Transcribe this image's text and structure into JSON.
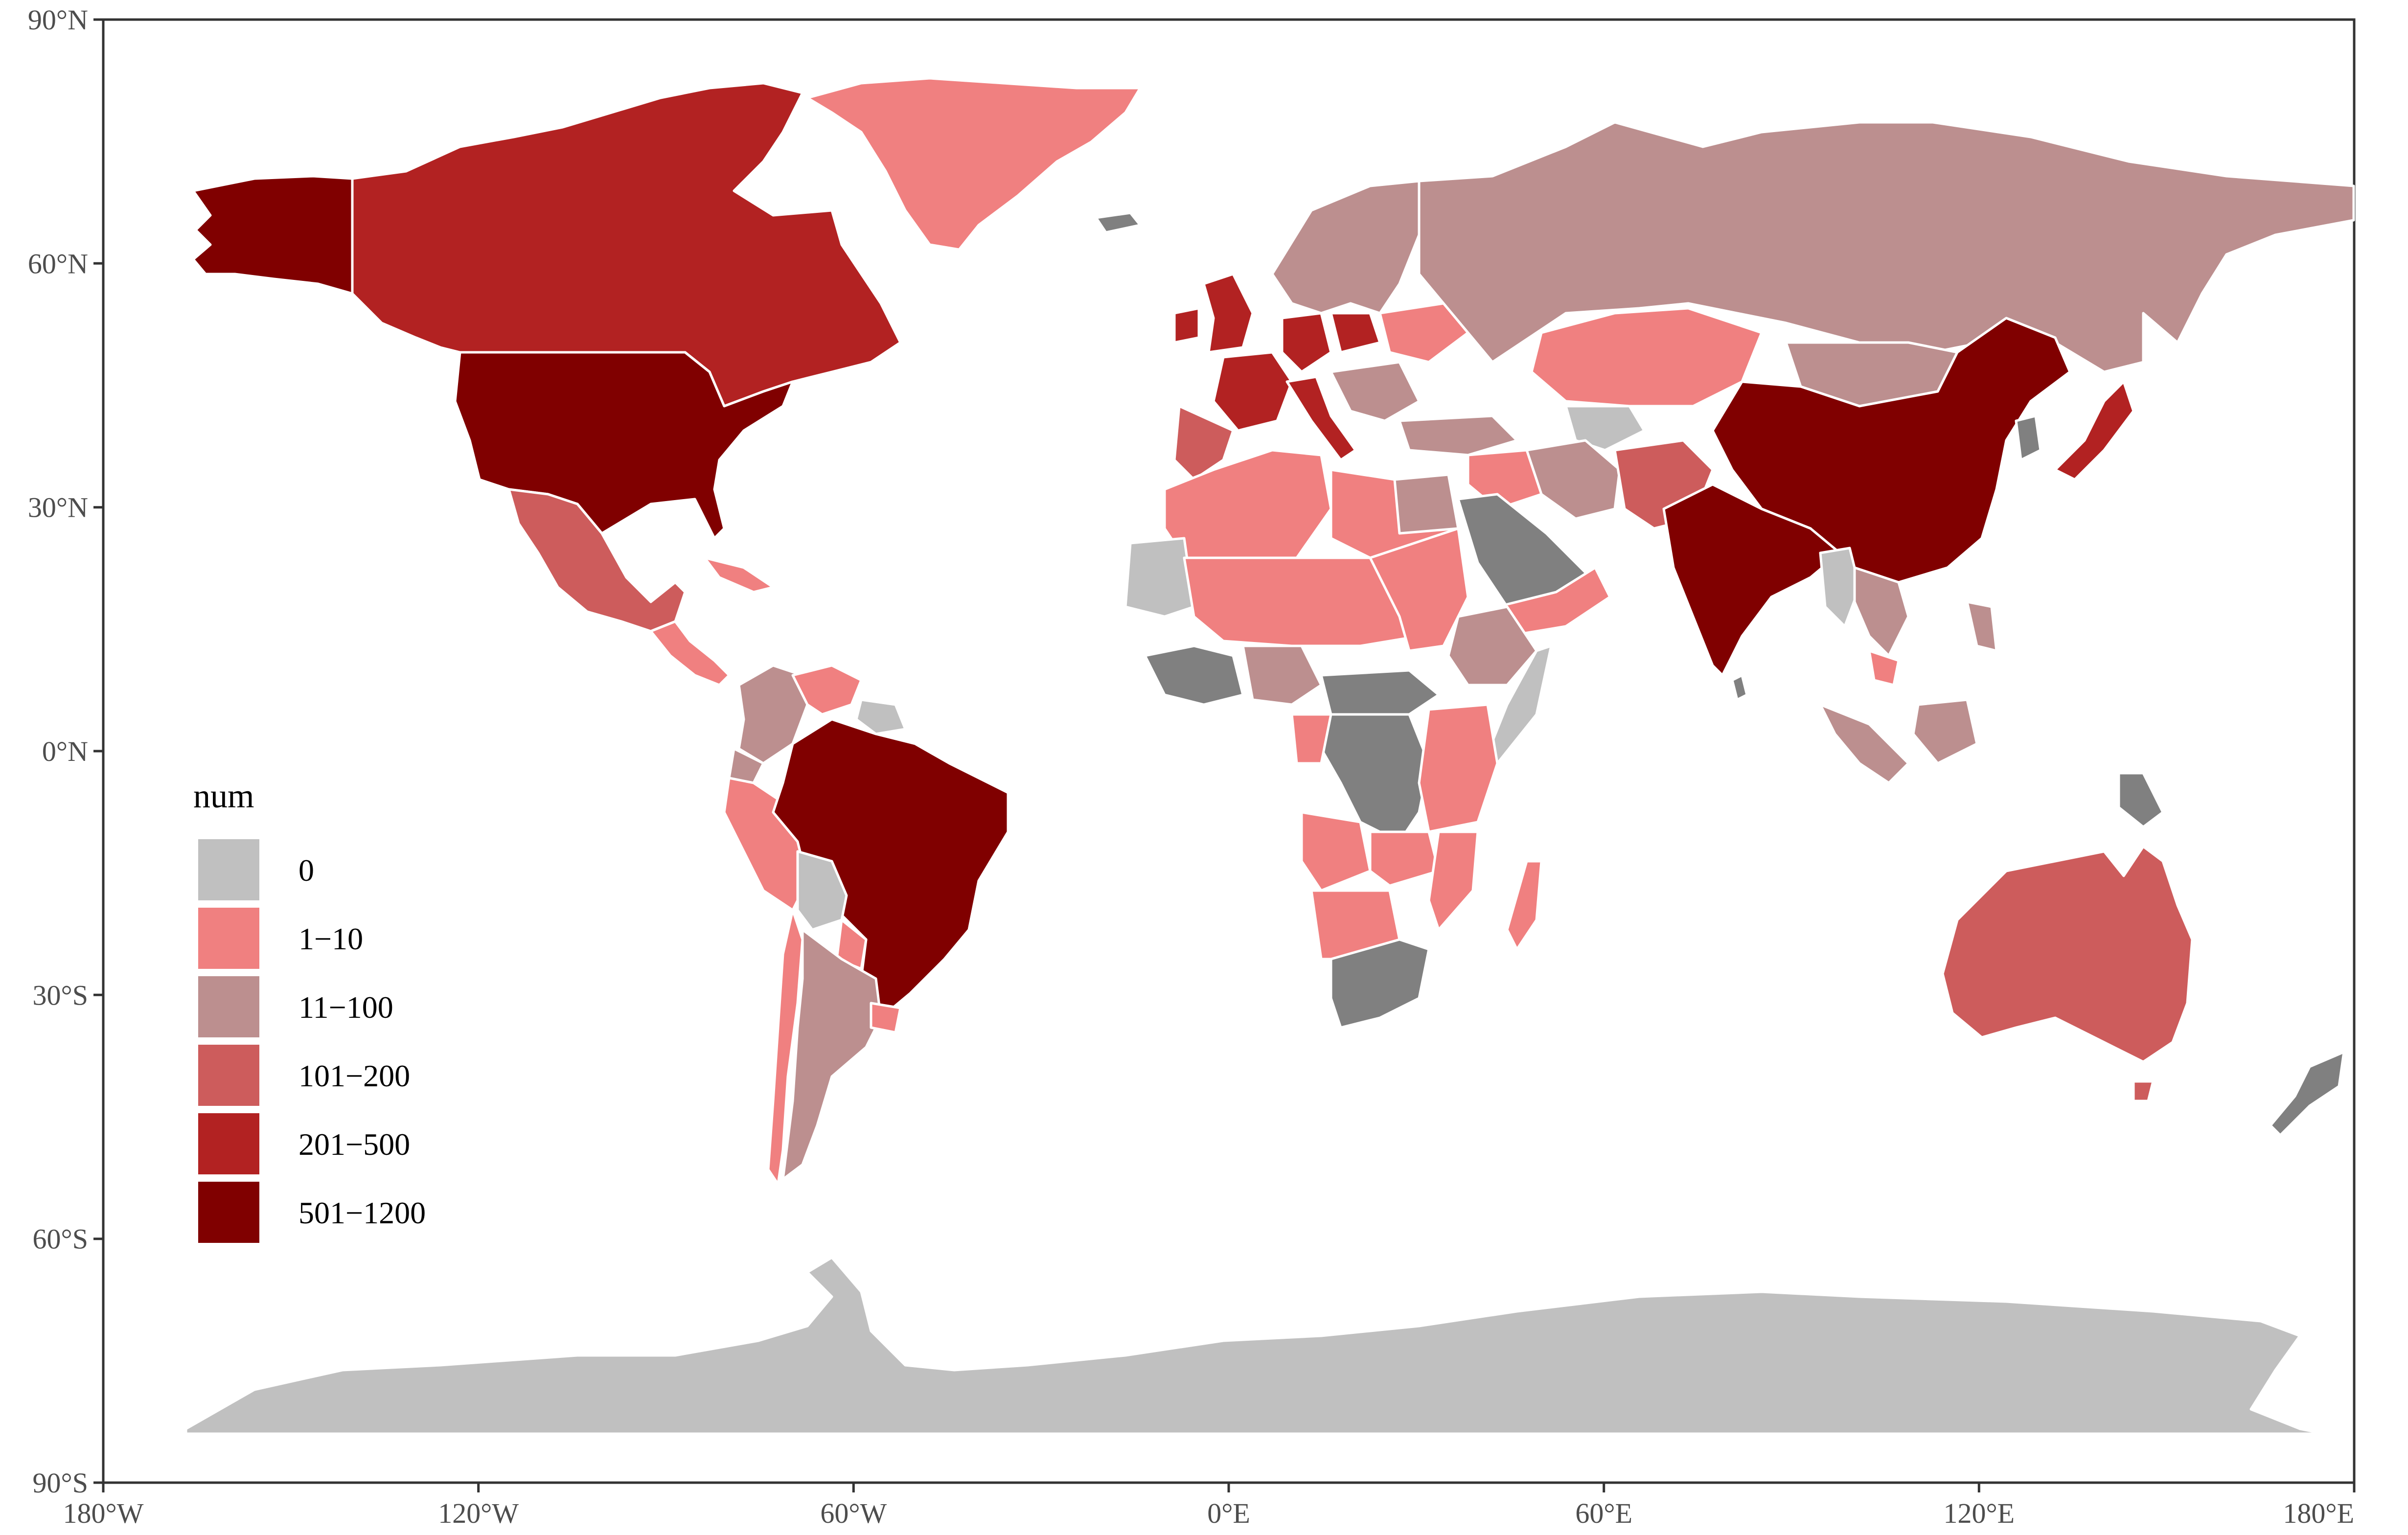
{
  "map": {
    "x_axis": {
      "ticks": [
        "180°W",
        "120°W",
        "60°W",
        "0°E",
        "60°E",
        "120°E",
        "180°E"
      ]
    },
    "y_axis": {
      "ticks": [
        "90°N",
        "60°N",
        "30°N",
        "0°N",
        "30°S",
        "60°S",
        "90°S"
      ]
    },
    "legend": {
      "title": "num",
      "items": [
        {
          "label": "0",
          "color": "#c0c0c0"
        },
        {
          "label": "1−10",
          "color": "#f08080"
        },
        {
          "label": "11−100",
          "color": "#bc8f8f"
        },
        {
          "label": "101−200",
          "color": "#cd5c5c"
        },
        {
          "label": "201−500",
          "color": "#b22222"
        },
        {
          "label": "501−1200",
          "color": "#800000"
        }
      ]
    },
    "colors": {
      "no_data": "#808080",
      "background": "#ffffff",
      "border": "#ffffff"
    }
  }
}
